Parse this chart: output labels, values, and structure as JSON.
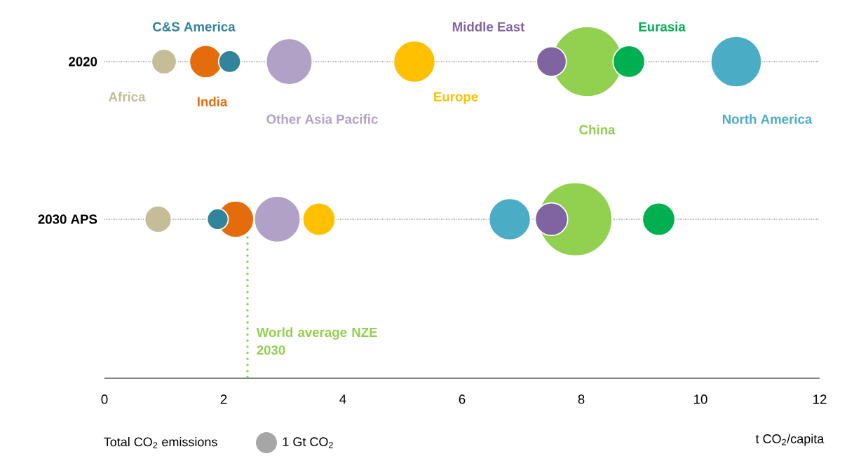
{
  "chart_data": {
    "type": "bubble",
    "orientation": "horizontal",
    "categories": [
      "2020",
      "2030 APS"
    ],
    "series": [
      {
        "name": "Africa",
        "color": "#c4bd97",
        "values": [
          1.0,
          0.9
        ],
        "sizes": [
          1.4,
          1.6
        ]
      },
      {
        "name": "India",
        "color": "#e46c0a",
        "values": [
          1.7,
          2.2
        ],
        "sizes": [
          2.4,
          3.0
        ]
      },
      {
        "name": "Europe",
        "color": "#ffc000",
        "values": [
          5.2,
          3.6
        ],
        "sizes": [
          3.9,
          2.4
        ]
      },
      {
        "name": "Other Asia Pacific",
        "color": "#b2a1c7",
        "values": [
          3.1,
          2.9
        ],
        "sizes": [
          4.8,
          4.8
        ]
      },
      {
        "name": "C&S America",
        "color": "#31849b",
        "values": [
          2.1,
          1.9
        ],
        "sizes": [
          1.1,
          1.0
        ]
      },
      {
        "name": "North America",
        "color": "#4bacc6",
        "values": [
          10.6,
          6.8
        ],
        "sizes": [
          5.8,
          3.9
        ]
      },
      {
        "name": "China",
        "color": "#92d050",
        "values": [
          8.1,
          7.9
        ],
        "sizes": [
          11.1,
          12.2
        ]
      },
      {
        "name": "Middle East",
        "color": "#8064a2",
        "values": [
          7.5,
          7.5
        ],
        "sizes": [
          2.0,
          2.4
        ]
      },
      {
        "name": "Eurasia",
        "color": "#00b050",
        "values": [
          8.8,
          9.3
        ],
        "sizes": [
          2.3,
          2.4
        ]
      }
    ],
    "size_legend": [
      {
        "value": 1,
        "label": "1 Gt CO$_{2}$"
      }
    ],
    "xlim": [
      0,
      12
    ],
    "xticks": [
      0,
      2,
      4,
      6,
      8,
      10,
      12
    ],
    "xlabel": "t CO$_{2}$/capita",
    "grid": "y",
    "ref_lines": [
      {
        "axis": "x",
        "value": 2.4,
        "label": "World average NZE 2030",
        "color": "#92d050",
        "line_style": "dotted"
      }
    ],
    "annotations": [
      "Total CO$_{2}$ emissions"
    ]
  }
}
